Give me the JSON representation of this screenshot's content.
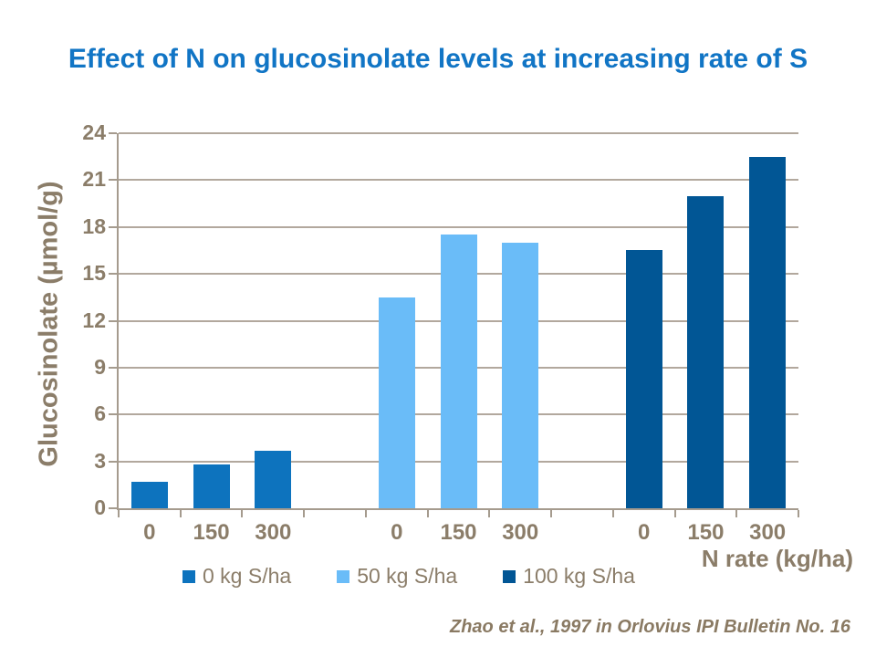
{
  "title": "Effect of N on glucosinolate levels at increasing rate of S",
  "citation": "Zhao et al., 1997 in Orlovius IPI Bulletin No. 16",
  "colors": {
    "title_text": "#1175C5",
    "axis_text": "#8B7D69",
    "grid_line": "#B2A89D",
    "axis_line": "#A59B8E",
    "citation_text": "#8A7A63"
  },
  "chart_data": {
    "type": "bar",
    "title": "Effect of N on glucosinolate levels at increasing rate of S",
    "xlabel": "N rate (kg/ha)",
    "ylabel": "Glucosinolate (µmol/g)",
    "ylim": [
      0,
      24
    ],
    "ytick_step": 3,
    "yticks": [
      0,
      3,
      6,
      9,
      12,
      15,
      18,
      21,
      24
    ],
    "grid": true,
    "legend_position": "bottom",
    "categories": [
      "0",
      "150",
      "300"
    ],
    "series": [
      {
        "name": "0 kg S/ha",
        "color": "#0D73BE",
        "values": [
          1.7,
          2.8,
          3.7
        ]
      },
      {
        "name": "50 kg S/ha",
        "color": "#6ABCF8",
        "values": [
          13.5,
          17.5,
          17.0
        ]
      },
      {
        "name": "100 kg S/ha",
        "color": "#015695",
        "values": [
          16.5,
          20.0,
          22.5
        ]
      }
    ]
  }
}
